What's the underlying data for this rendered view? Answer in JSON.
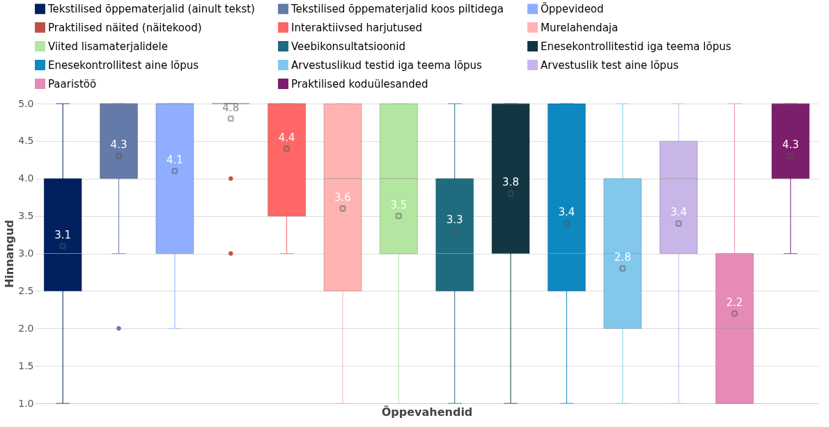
{
  "chart_data": {
    "type": "box",
    "xlabel": "Õppevahendid",
    "ylabel": "Hinnangud",
    "categories": [
      null,
      null,
      null,
      null,
      null,
      null,
      null,
      null,
      null,
      null,
      null,
      null,
      null,
      null
    ],
    "ylim": [
      1,
      5
    ],
    "yticks": [
      {
        "value": 1,
        "label": "1.0"
      },
      {
        "value": 1.5,
        "label": "1.5"
      },
      {
        "value": 2,
        "label": "2.0"
      },
      {
        "value": 2.5,
        "label": "2.5"
      },
      {
        "value": 3,
        "label": "3.0"
      },
      {
        "value": 3.5,
        "label": "3.5"
      },
      {
        "value": 4,
        "label": "4.0"
      },
      {
        "value": 4.5,
        "label": "4.5"
      },
      {
        "value": 5,
        "label": "5.0"
      }
    ],
    "grid": "y",
    "legend": "top",
    "tick_labels": "y",
    "series": [
      {
        "name": "Tekstilised õppematerjalid (ainult tekst)",
        "color": "#002060",
        "value_labels": [
          "3.1",
          null,
          null,
          null,
          null,
          null,
          null,
          null,
          null,
          null,
          null,
          null,
          null,
          null
        ],
        "boxes": [
          {
            "low": 1,
            "q1": 2.5,
            "median": 3,
            "q3": 4,
            "high": 5,
            "mean": 3.1
          },
          null,
          null,
          null,
          null,
          null,
          null,
          null,
          null,
          null,
          null,
          null,
          null,
          null
        ]
      },
      {
        "name": "Tekstilised õppematerjalid koos piltidega",
        "color": "#647aa8",
        "value_labels": [
          null,
          "4.3",
          null,
          null,
          null,
          null,
          null,
          null,
          null,
          null,
          null,
          null,
          null,
          null
        ],
        "boxes": [
          null,
          {
            "low": 3,
            "q1": 4,
            "median": 5,
            "q3": 5,
            "high": 5,
            "mean": 4.3,
            "outliers": [
              2
            ]
          },
          null,
          null,
          null,
          null,
          null,
          null,
          null,
          null,
          null,
          null,
          null,
          null
        ]
      },
      {
        "name": "Õppevideod",
        "color": "#8faeff",
        "value_labels": [
          null,
          null,
          "4.1",
          null,
          null,
          null,
          null,
          null,
          null,
          null,
          null,
          null,
          null,
          null
        ],
        "boxes": [
          null,
          null,
          {
            "low": 2,
            "q1": 3,
            "median": 5,
            "q3": 5,
            "high": 5,
            "mean": 4.1
          },
          null,
          null,
          null,
          null,
          null,
          null,
          null,
          null,
          null,
          null,
          null
        ]
      },
      {
        "name": "Praktilised näited (näitekood)",
        "color": "#c0504d",
        "value_labels": [
          null,
          null,
          null,
          "4.8",
          null,
          null,
          null,
          null,
          null,
          null,
          null,
          null,
          null,
          null
        ],
        "boxes": [
          null,
          null,
          null,
          {
            "low": 5,
            "q1": 5,
            "median": 5,
            "q3": 5,
            "high": 5,
            "mean": 4.8,
            "outliers": [
              4,
              3
            ]
          },
          null,
          null,
          null,
          null,
          null,
          null,
          null,
          null,
          null,
          null
        ]
      },
      {
        "name": "Interaktiivsed harjutused",
        "color": "#ff6666",
        "value_labels": [
          null,
          null,
          null,
          null,
          "4.4",
          null,
          null,
          null,
          null,
          null,
          null,
          null,
          null,
          null
        ],
        "boxes": [
          null,
          null,
          null,
          null,
          {
            "low": 3,
            "q1": 3.5,
            "median": 5,
            "q3": 5,
            "high": 5,
            "mean": 4.4
          },
          null,
          null,
          null,
          null,
          null,
          null,
          null,
          null,
          null
        ]
      },
      {
        "name": "Murelahendaja",
        "color": "#ffb3b3",
        "value_labels": [
          null,
          null,
          null,
          null,
          null,
          "3.6",
          null,
          null,
          null,
          null,
          null,
          null,
          null,
          null
        ],
        "boxes": [
          null,
          null,
          null,
          null,
          null,
          {
            "low": 1,
            "q1": 2.5,
            "median": 4,
            "q3": 5,
            "high": 5,
            "mean": 3.6
          },
          null,
          null,
          null,
          null,
          null,
          null,
          null,
          null
        ]
      },
      {
        "name": "Viited lisamaterjalidele",
        "color": "#b3e6a0",
        "value_labels": [
          null,
          null,
          null,
          null,
          null,
          null,
          "3.5",
          null,
          null,
          null,
          null,
          null,
          null,
          null
        ],
        "boxes": [
          null,
          null,
          null,
          null,
          null,
          null,
          {
            "low": 1,
            "q1": 3,
            "median": 4,
            "q3": 5,
            "high": 5,
            "mean": 3.5
          },
          null,
          null,
          null,
          null,
          null,
          null,
          null
        ]
      },
      {
        "name": "Veebikonsultatsioonid",
        "color": "#1f6b7f",
        "value_labels": [
          null,
          null,
          null,
          null,
          null,
          null,
          null,
          "3.3",
          null,
          null,
          null,
          null,
          null,
          null
        ],
        "boxes": [
          null,
          null,
          null,
          null,
          null,
          null,
          null,
          {
            "low": 1,
            "q1": 2.5,
            "median": 3,
            "q3": 4,
            "high": 5,
            "mean": 3.3
          },
          null,
          null,
          null,
          null,
          null,
          null
        ]
      },
      {
        "name": "Enesekontrollitestid iga teema lõpus",
        "color": "#123642",
        "value_labels": [
          null,
          null,
          null,
          null,
          null,
          null,
          null,
          null,
          "3.8",
          null,
          null,
          null,
          null,
          null
        ],
        "boxes": [
          null,
          null,
          null,
          null,
          null,
          null,
          null,
          null,
          {
            "low": 1,
            "q1": 3,
            "median": 5,
            "q3": 5,
            "high": 5,
            "mean": 3.8
          },
          null,
          null,
          null,
          null,
          null
        ]
      },
      {
        "name": "Enesekontrollitest aine lõpus",
        "color": "#0e88c0",
        "value_labels": [
          null,
          null,
          null,
          null,
          null,
          null,
          null,
          null,
          null,
          "3.4",
          null,
          null,
          null,
          null
        ],
        "boxes": [
          null,
          null,
          null,
          null,
          null,
          null,
          null,
          null,
          null,
          {
            "low": 1,
            "q1": 2.5,
            "median": 3,
            "q3": 5,
            "high": 5,
            "mean": 3.4
          },
          null,
          null,
          null,
          null
        ]
      },
      {
        "name": "Arvestuslikud testid iga teema lõpus",
        "color": "#82c8ec",
        "value_labels": [
          null,
          null,
          null,
          null,
          null,
          null,
          null,
          null,
          null,
          null,
          "2.8",
          null,
          null,
          null
        ],
        "boxes": [
          null,
          null,
          null,
          null,
          null,
          null,
          null,
          null,
          null,
          null,
          {
            "low": 1,
            "q1": 2,
            "median": 3,
            "q3": 4,
            "high": 5,
            "mean": 2.8
          },
          null,
          null,
          null
        ]
      },
      {
        "name": "Arvestuslik test aine lõpus",
        "color": "#c9b6e8",
        "value_labels": [
          null,
          null,
          null,
          null,
          null,
          null,
          null,
          null,
          null,
          null,
          null,
          "3.4",
          null,
          null
        ],
        "boxes": [
          null,
          null,
          null,
          null,
          null,
          null,
          null,
          null,
          null,
          null,
          null,
          {
            "low": 1,
            "q1": 3,
            "median": 4,
            "q3": 4.5,
            "high": 5,
            "mean": 3.4
          },
          null,
          null
        ]
      },
      {
        "name": "Paaristöö",
        "color": "#e68ab8",
        "value_labels": [
          null,
          null,
          null,
          null,
          null,
          null,
          null,
          null,
          null,
          null,
          null,
          null,
          "2.2",
          null
        ],
        "boxes": [
          null,
          null,
          null,
          null,
          null,
          null,
          null,
          null,
          null,
          null,
          null,
          null,
          {
            "low": 1,
            "q1": 1,
            "median": 2,
            "q3": 3,
            "high": 5,
            "mean": 2.2
          },
          null
        ]
      },
      {
        "name": "Praktilised koduülesanded",
        "color": "#7b1e6b",
        "value_labels": [
          null,
          null,
          null,
          null,
          null,
          null,
          null,
          null,
          null,
          null,
          null,
          null,
          null,
          "4.3"
        ],
        "boxes": [
          null,
          null,
          null,
          null,
          null,
          null,
          null,
          null,
          null,
          null,
          null,
          null,
          null,
          {
            "low": 3,
            "q1": 4,
            "median": 5,
            "q3": 5,
            "high": 5,
            "mean": 4.3
          }
        ]
      }
    ]
  }
}
